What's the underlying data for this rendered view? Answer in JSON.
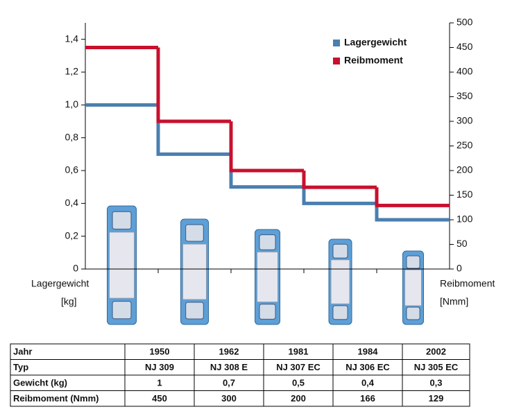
{
  "chart_data": {
    "type": "step",
    "series": [
      {
        "name": "Lagergewicht",
        "color": "#4a7fb0",
        "values": [
          1,
          0.7,
          0.5,
          0.4,
          0.3
        ]
      },
      {
        "name": "Reibmoment",
        "color": "#c8102e",
        "axis": "y2",
        "values": [
          450,
          300,
          200,
          166,
          129
        ]
      }
    ],
    "y_label": [
      "Lagergewicht",
      "[kg]"
    ],
    "y2_label": [
      "Reibmoment",
      "[Nmm]"
    ],
    "ylim": [
      0,
      1.5
    ],
    "yticks": [
      0,
      {
        "value": 0.2,
        "label": "0,2"
      },
      {
        "value": 0.4,
        "label": "0,4"
      },
      {
        "value": 0.6,
        "label": "0,6"
      },
      {
        "value": 0.8,
        "label": "0,8"
      },
      {
        "value": 1.0,
        "label": "1,0"
      },
      {
        "value": 1.2,
        "label": "1,2"
      },
      {
        "value": 1.4,
        "label": "1,4"
      }
    ],
    "y2lim": [
      0,
      500
    ],
    "y2ticks": [
      0,
      50,
      100,
      150,
      200,
      250,
      300,
      350,
      400,
      450,
      500
    ],
    "legend": "upper right"
  },
  "table": {
    "rows": [
      [
        "Jahr",
        "1950",
        "1962",
        "1981",
        "1984",
        "2002"
      ],
      [
        "Typ",
        "NJ 309",
        "NJ 308 E",
        "NJ 307 EC",
        "NJ 306 EC",
        "NJ 305 EC"
      ],
      [
        "Gewicht (kg)",
        "1",
        "0,7",
        "0,5",
        "0,4",
        "0,3"
      ],
      [
        "Reibmoment (Nmm)",
        "450",
        "300",
        "200",
        "166",
        "129"
      ]
    ]
  }
}
